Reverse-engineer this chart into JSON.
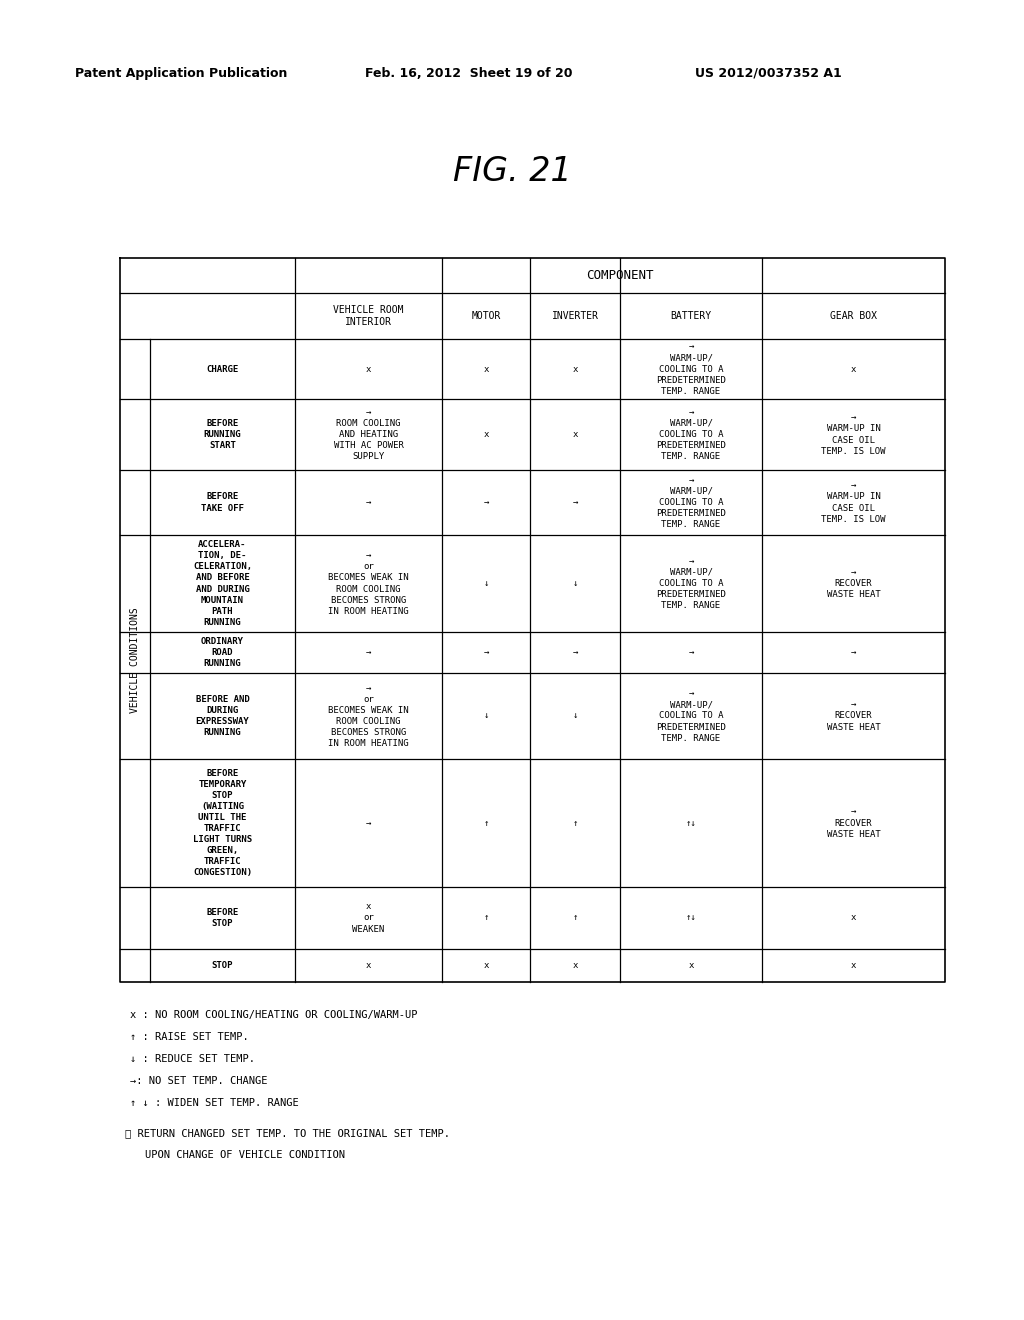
{
  "title": "FIG. 21",
  "header_line1": "Patent Application Publication",
  "header_line2": "Feb. 16, 2012  Sheet 19 of 20",
  "header_line3": "US 2012/0037352 A1",
  "component_label": "COMPONENT",
  "col_headers": [
    "VEHICLE ROOM\nINTERIOR",
    "MOTOR",
    "INVERTER",
    "BATTERY",
    "GEAR BOX"
  ],
  "row_label_outer": "VEHICLE CONDITIONS",
  "row_labels": [
    "CHARGE",
    "BEFORE\nRUNNING\nSTART",
    "BEFORE\nTAKE OFF",
    "ACCELERA-\nTION, DE-\nCELERATION,\nAND BEFORE\nAND DURING\nMOUNTAIN\nPATH\nRUNNING",
    "ORDINARY\nROAD\nRUNNING",
    "BEFORE AND\nDURING\nEXPRESSWAY\nRUNNING",
    "BEFORE\nTEMPORARY\nSTOP\n(WAITING\nUNTIL THE\nTRAFFIC\nLIGHT TURNS\nGREEN,\nTRAFFIC\nCONGESTION)",
    "BEFORE\nSTOP",
    "STOP"
  ],
  "cell_data": [
    [
      "x",
      "x",
      "x",
      "→\nWARM-UP/\nCOOLING TO A\nPREDETERMINED\nTEMP. RANGE",
      "x"
    ],
    [
      "→\nROOM COOLING\nAND HEATING\nWITH AC POWER\nSUPPLY",
      "x",
      "x",
      "→\nWARM-UP/\nCOOLING TO A\nPREDETERMINED\nTEMP. RANGE",
      "→\nWARM-UP IN\nCASE OIL\nTEMP. IS LOW"
    ],
    [
      "→",
      "→",
      "→",
      "→\nWARM-UP/\nCOOLING TO A\nPREDETERMINED\nTEMP. RANGE",
      "→\nWARM-UP IN\nCASE OIL\nTEMP. IS LOW"
    ],
    [
      "→\nor\nBECOMES WEAK IN\nROOM COOLING\nBECOMES STRONG\nIN ROOM HEATING",
      "↓",
      "↓",
      "→\nWARM-UP/\nCOOLING TO A\nPREDETERMINED\nTEMP. RANGE",
      "→\nRECOVER\nWASTE HEAT"
    ],
    [
      "→",
      "→",
      "→",
      "→",
      "→"
    ],
    [
      "→\nor\nBECOMES WEAK IN\nROOM COOLING\nBECOMES STRONG\nIN ROOM HEATING",
      "↓",
      "↓",
      "→\nWARM-UP/\nCOOLING TO A\nPREDETERMINED\nTEMP. RANGE",
      "→\nRECOVER\nWASTE HEAT"
    ],
    [
      "→",
      "↑",
      "↑",
      "↑↓",
      "→\nRECOVER\nWASTE HEAT"
    ],
    [
      "x\nor\nWEAKEN",
      "↑",
      "↑",
      "↑↓",
      "x"
    ],
    [
      "x",
      "x",
      "x",
      "x",
      "x"
    ]
  ],
  "footnotes": [
    "x : NO ROOM COOLING/HEATING OR COOLING/WARM-UP",
    "↑ : RAISE SET TEMP.",
    "↓ : REDUCE SET TEMP.",
    "→: NO SET TEMP. CHANGE",
    "↑ ↓ : WIDEN SET TEMP. RANGE"
  ],
  "note_line1": "※ RETURN CHANGED SET TEMP. TO THE ORIGINAL SET TEMP.",
  "note_line2": "   UPON CHANGE OF VEHICLE CONDITION"
}
